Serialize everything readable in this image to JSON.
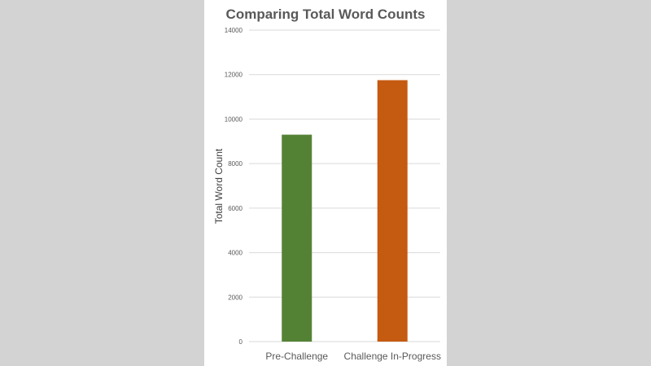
{
  "chart_data": {
    "type": "bar",
    "title": "Comparing Total Word Counts",
    "xlabel": "",
    "ylabel": "Total Word Count",
    "categories": [
      "Pre-Challenge",
      "Challenge In-Progress"
    ],
    "values": [
      9300,
      11750
    ],
    "colors": [
      "#548235",
      "#c55a11"
    ],
    "ylim": [
      0,
      14000
    ],
    "yticks": [
      "0",
      "2000",
      "4000",
      "6000",
      "8000",
      "10000",
      "12000",
      "14000"
    ],
    "grid": true,
    "legend": "none"
  },
  "colors": {
    "background": "#d3d3d3",
    "card": "#ffffff",
    "gridline": "#d9d9d9",
    "text": "#595959"
  }
}
